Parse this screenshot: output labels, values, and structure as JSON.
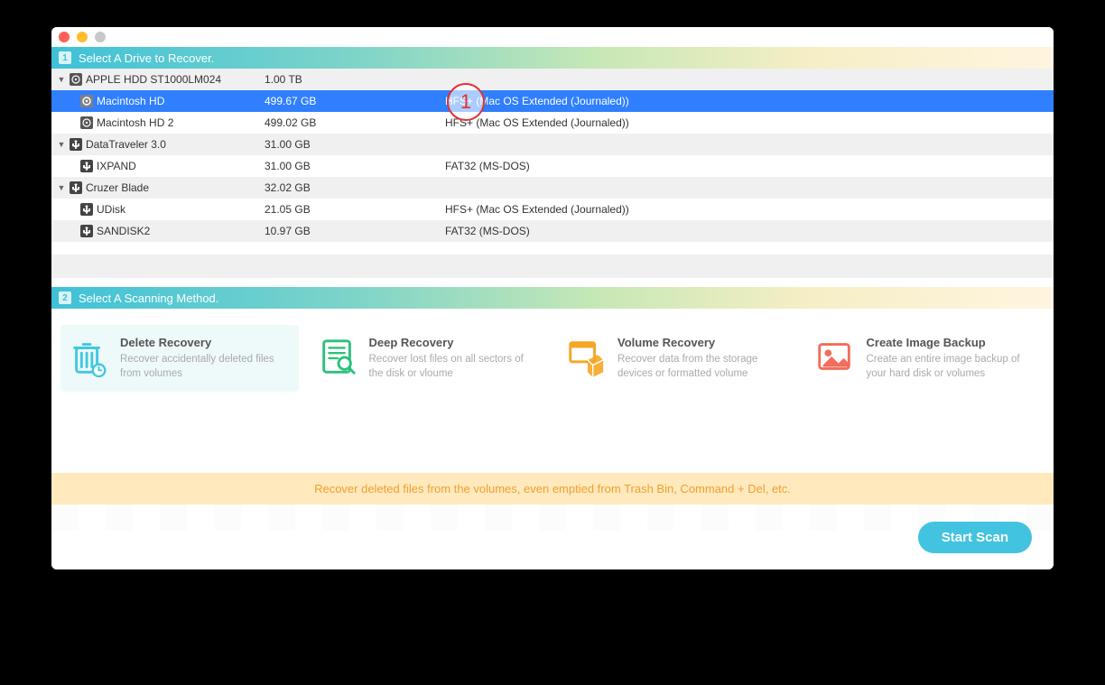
{
  "section1": {
    "badge": "1",
    "title": "Select A Drive to Recover."
  },
  "section2": {
    "badge": "2",
    "title": "Select A Scanning Method."
  },
  "drives": [
    {
      "name": "APPLE HDD ST1000LM024",
      "size": "1.00 TB",
      "format": "",
      "parent": true,
      "iconType": "disk",
      "alt": true
    },
    {
      "name": "Macintosh HD",
      "size": "499.67 GB",
      "format": "HFS+ (Mac OS Extended (Journaled))",
      "child": true,
      "iconType": "disk",
      "selected": true
    },
    {
      "name": "Macintosh HD 2",
      "size": "499.02 GB",
      "format": "HFS+ (Mac OS Extended (Journaled))",
      "child": true,
      "iconType": "disk"
    },
    {
      "name": "DataTraveler 3.0",
      "size": "31.00 GB",
      "format": "",
      "parent": true,
      "iconType": "usb",
      "alt": true
    },
    {
      "name": "IXPAND",
      "size": "31.00 GB",
      "format": "FAT32 (MS-DOS)",
      "child": true,
      "iconType": "usb"
    },
    {
      "name": "Cruzer Blade",
      "size": "32.02 GB",
      "format": "",
      "parent": true,
      "iconType": "usb",
      "alt": true
    },
    {
      "name": "UDisk",
      "size": "21.05 GB",
      "format": "HFS+ (Mac OS Extended (Journaled))",
      "child": true,
      "iconType": "usb"
    },
    {
      "name": "SANDISK2",
      "size": "10.97 GB",
      "format": "FAT32 (MS-DOS)",
      "child": true,
      "iconType": "usb",
      "alt": true
    }
  ],
  "methods": [
    {
      "title": "Delete Recovery",
      "desc": "Recover accidentally deleted files from volumes",
      "color": "#3fc8e0",
      "selected": true,
      "icon": "trash"
    },
    {
      "title": "Deep Recovery",
      "desc": "Recover lost files on all sectors of the disk or vloume",
      "color": "#2cc17b",
      "icon": "scan"
    },
    {
      "title": "Volume Recovery",
      "desc": "Recover data from the storage devices or formatted volume",
      "color": "#f5a623",
      "icon": "box"
    },
    {
      "title": "Create Image Backup",
      "desc": "Create an entire image backup of your hard disk or volumes",
      "color": "#f26d5b",
      "icon": "image"
    }
  ],
  "hint": "Recover deleted files from the volumes, even emptied from Trash Bin, Command + Del, etc.",
  "startBtn": "Start Scan",
  "annotation": "1"
}
